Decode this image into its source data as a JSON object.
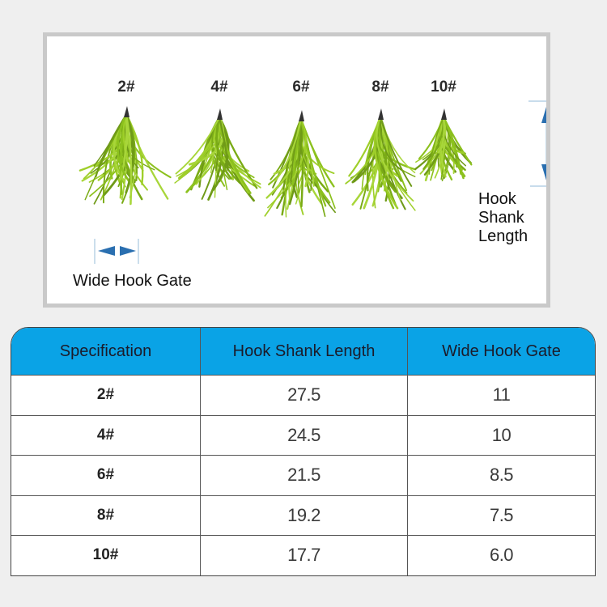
{
  "photo": {
    "sizes": [
      "2#",
      "4#",
      "6#",
      "8#",
      "10#"
    ],
    "annotations": {
      "hook_shank_length": [
        "Hook",
        "Shank",
        "Length"
      ],
      "wide_hook_gate": "Wide Hook Gate"
    },
    "colors": {
      "arrow": "#2a6fb0",
      "lure_green": "#8cc11e",
      "border": "#c9c9c9"
    }
  },
  "table": {
    "header_color": "#0aa3e6",
    "columns": [
      "Specification",
      "Hook Shank Length",
      "Wide Hook Gate"
    ],
    "rows": [
      {
        "spec": "2#",
        "shank": "27.5",
        "gate": "11"
      },
      {
        "spec": "4#",
        "shank": "24.5",
        "gate": "10"
      },
      {
        "spec": "6#",
        "shank": "21.5",
        "gate": "8.5"
      },
      {
        "spec": "8#",
        "shank": "19.2",
        "gate": "7.5"
      },
      {
        "spec": "10#",
        "shank": "17.7",
        "gate": "6.0"
      }
    ]
  }
}
